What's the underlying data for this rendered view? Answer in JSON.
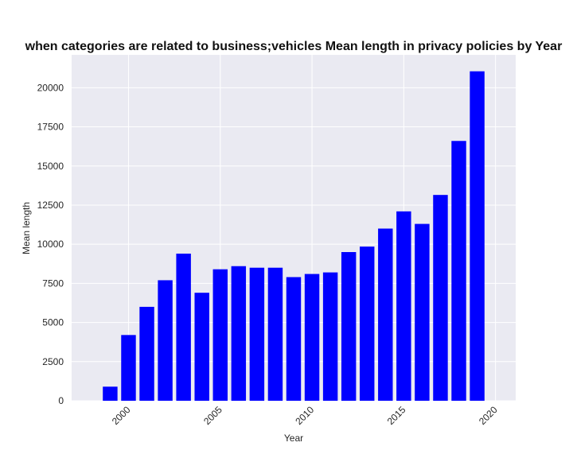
{
  "chart_data": {
    "type": "bar",
    "title": "when categories are related to business;vehicles Mean length in privacy policies by Year",
    "xlabel": "Year",
    "ylabel": "Mean length",
    "x": [
      1999,
      2000,
      2001,
      2002,
      2003,
      2004,
      2005,
      2006,
      2007,
      2008,
      2009,
      2010,
      2011,
      2012,
      2013,
      2014,
      2015,
      2016,
      2017,
      2018,
      2019
    ],
    "values": [
      900,
      4200,
      6000,
      7700,
      9400,
      6900,
      8400,
      8600,
      8500,
      8500,
      7900,
      8100,
      8200,
      9500,
      9850,
      11000,
      12100,
      11300,
      13150,
      16600,
      21050
    ],
    "x_ticks": [
      2000,
      2005,
      2010,
      2015,
      2020
    ],
    "y_ticks": [
      0,
      2500,
      5000,
      7500,
      10000,
      12500,
      15000,
      17500,
      20000
    ],
    "xlim": [
      1996.9,
      2021.1
    ],
    "ylim": [
      0,
      22100
    ],
    "grid": true,
    "colors": {
      "bar": "#0000ff",
      "plot_background": "#eaeaf2",
      "grid": "#ffffff"
    }
  }
}
